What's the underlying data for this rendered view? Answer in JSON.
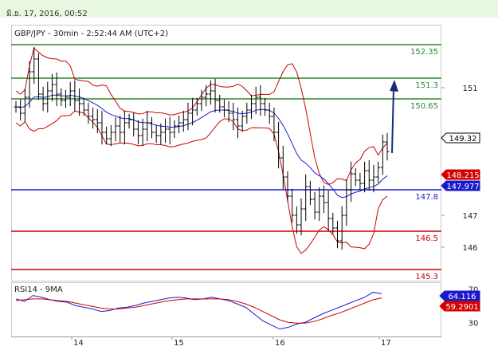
{
  "header": {
    "timestamp": "มิ.ย. 17, 2016, 00:52"
  },
  "main_panel": {
    "title": "GBP/JPY - 30min - 2:52:44 AM (UTC+2)"
  },
  "rsi_panel": {
    "title": "RSI14 - 9MA"
  },
  "colors": {
    "price": "#000000",
    "bands": "#cc0000",
    "ma": "#1a1acc",
    "resistance": "#2a8a2a",
    "support": "#cc0000",
    "pivot": "#1a1acc",
    "projection": "#1a2a80",
    "rsi": "#1a1acc",
    "rsi_ma": "#cc0000"
  },
  "chart_data": [
    {
      "type": "candlestick",
      "title": "GBP/JPY - 30min - 2:52:44 AM (UTC+2)",
      "x_ticks": [
        "14",
        "15",
        "16",
        "17"
      ],
      "y_ticks": [
        151,
        147,
        146
      ],
      "ylim": [
        145.7,
        152.75
      ],
      "series": [
        {
          "name": "Price (approximate closes)",
          "values": [
            150.4,
            150.2,
            150.7,
            151.5,
            151.9,
            150.8,
            150.5,
            150.9,
            151.1,
            150.8,
            150.6,
            150.7,
            150.9,
            150.6,
            150.5,
            150.3,
            150.1,
            150.0,
            149.9,
            149.6,
            149.4,
            149.6,
            149.8,
            149.6,
            149.9,
            150.0,
            149.7,
            149.5,
            149.7,
            149.9,
            149.6,
            149.5,
            149.6,
            149.7,
            149.6,
            149.8,
            149.9,
            150.0,
            150.2,
            150.3,
            150.5,
            150.7,
            150.8,
            150.9,
            150.6,
            150.4,
            150.3,
            150.2,
            150.0,
            149.8,
            150.1,
            150.3,
            150.5,
            150.7,
            150.5,
            150.3,
            150.1,
            149.6,
            148.8,
            148.2,
            147.6,
            147.0,
            146.7,
            147.2,
            147.9,
            147.5,
            147.1,
            147.6,
            147.4,
            146.9,
            146.6,
            146.2,
            147.0,
            147.8,
            148.3,
            148.1,
            148.0,
            148.4,
            148.1,
            148.2,
            148.5,
            149.3,
            149.0
          ]
        }
      ],
      "bands": [
        "Bollinger upper",
        "Bollinger lower",
        "Moving average"
      ],
      "levels": [
        {
          "value": 152.35,
          "label": "152.35",
          "kind": "resistance"
        },
        {
          "value": 151.3,
          "label": "151.3",
          "kind": "resistance"
        },
        {
          "value": 150.65,
          "label": "150.65",
          "kind": "resistance"
        },
        {
          "value": 147.8,
          "label": "147.8",
          "kind": "pivot"
        },
        {
          "value": 146.5,
          "label": "146.5",
          "kind": "support"
        },
        {
          "value": 145.3,
          "label": "145.3",
          "kind": "support"
        }
      ],
      "badges": [
        {
          "label": "149.32",
          "style": "price"
        },
        {
          "label": "148.215",
          "style": "red"
        },
        {
          "label": "147.977",
          "style": "blue"
        }
      ],
      "projection": "Upward arrow toward 151.3"
    },
    {
      "type": "line",
      "title": "RSI14 - 9MA",
      "y_ticks": [
        70,
        30
      ],
      "ylim": [
        15,
        75
      ],
      "series": [
        {
          "name": "RSI14",
          "values": [
            58,
            55,
            62,
            60,
            57,
            55,
            54,
            50,
            48,
            46,
            43,
            44,
            47,
            48,
            50,
            53,
            55,
            57,
            59,
            60,
            59,
            57,
            58,
            60,
            58,
            56,
            52,
            48,
            40,
            32,
            27,
            22,
            24,
            28,
            30,
            35,
            40,
            44,
            48,
            52,
            56,
            60,
            66,
            64
          ]
        },
        {
          "name": "9MA",
          "values": [
            56,
            57,
            58,
            58,
            57,
            56,
            55,
            53,
            51,
            49,
            47,
            46,
            46,
            47,
            48,
            50,
            52,
            54,
            56,
            57,
            58,
            58,
            58,
            58,
            58,
            57,
            55,
            52,
            48,
            43,
            38,
            33,
            30,
            29,
            29,
            31,
            34,
            38,
            41,
            45,
            49,
            53,
            57,
            59
          ]
        }
      ],
      "badges": [
        {
          "label": "64.116",
          "style": "blue"
        },
        {
          "label": "59.2901",
          "style": "red"
        }
      ]
    }
  ]
}
